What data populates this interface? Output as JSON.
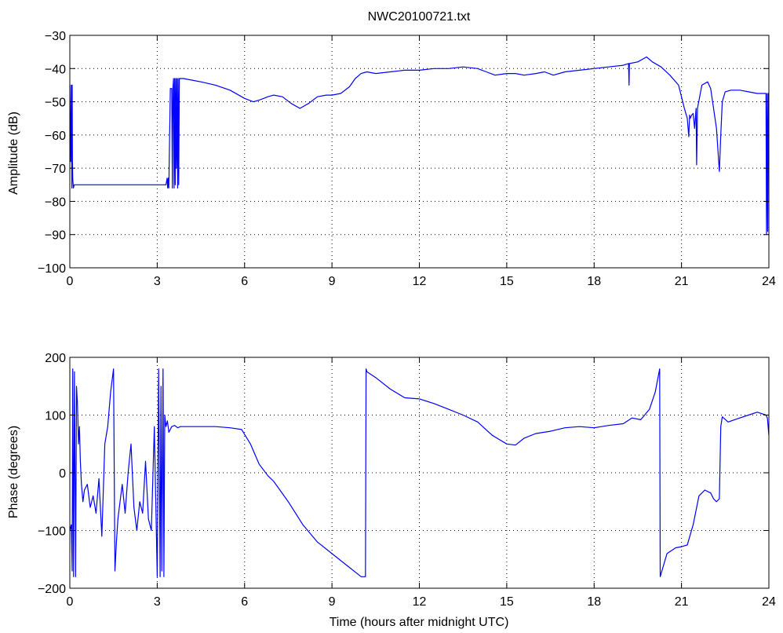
{
  "chart_data": [
    {
      "type": "line",
      "title": "NWC20100721.txt",
      "xlabel": "",
      "ylabel": "Amplitude (dB)",
      "xlim": [
        0,
        24
      ],
      "ylim": [
        -100,
        -30
      ],
      "xticks": [
        0,
        3,
        6,
        9,
        12,
        15,
        18,
        21,
        24
      ],
      "yticks": [
        -100,
        -90,
        -80,
        -70,
        -60,
        -50,
        -40,
        -30
      ],
      "grid": true,
      "line_color": "#0000ff",
      "series": [
        {
          "x": [
            0.0,
            0.03,
            0.05,
            0.07,
            0.08,
            0.09,
            0.1,
            0.12,
            0.15,
            3.3,
            3.34,
            3.36,
            3.38,
            3.4,
            3.45,
            3.5,
            3.52,
            3.54,
            3.56,
            3.58,
            3.6,
            3.62,
            3.64,
            3.66,
            3.68,
            3.7,
            3.72,
            3.74,
            3.76,
            3.8,
            3.85,
            3.9,
            4.5,
            5.0,
            5.5,
            6.0,
            6.3,
            6.5,
            6.8,
            7.0,
            7.3,
            7.6,
            7.9,
            8.0,
            8.2,
            8.5,
            8.8,
            9.0,
            9.3,
            9.6,
            9.8,
            10.0,
            10.2,
            10.5,
            11.0,
            11.5,
            12.0,
            12.5,
            13.0,
            13.5,
            14.0,
            14.3,
            14.6,
            15.0,
            15.3,
            15.6,
            16.0,
            16.3,
            16.6,
            17.0,
            17.5,
            18.0,
            18.5,
            19.0,
            19.18,
            19.2,
            19.21,
            19.22,
            19.5,
            19.8,
            20.0,
            20.3,
            20.6,
            20.9,
            21.1,
            21.2,
            21.25,
            21.28,
            21.3,
            21.35,
            21.4,
            21.45,
            21.5,
            21.52,
            21.55,
            21.7,
            21.9,
            22.0,
            22.2,
            22.3,
            22.35,
            22.4,
            22.5,
            22.7,
            23.0,
            23.3,
            23.6,
            23.9,
            23.92,
            23.94,
            23.96,
            23.98,
            24.0
          ],
          "y": [
            -45,
            -68,
            -45,
            -76,
            -45,
            -68,
            -73,
            -76,
            -75,
            -75,
            -73,
            -76,
            -73,
            -76,
            -46,
            -46,
            -76,
            -46,
            -43,
            -76,
            -43,
            -75,
            -43,
            -70,
            -43,
            -76,
            -43,
            -75,
            -43,
            -43,
            -43,
            -43,
            -44,
            -45,
            -46.5,
            -49,
            -50,
            -49.5,
            -48.5,
            -48,
            -48.5,
            -50.5,
            -52,
            -51.5,
            -50.5,
            -48.5,
            -48,
            -48,
            -47.5,
            -45.5,
            -43,
            -41.5,
            -41,
            -41.5,
            -41,
            -40.5,
            -40.5,
            -40,
            -40,
            -39.5,
            -40,
            -41,
            -42,
            -41.5,
            -41.5,
            -42,
            -41.5,
            -41,
            -42,
            -41,
            -40.5,
            -40,
            -39.5,
            -39,
            -38.5,
            -45,
            -38.5,
            -38.5,
            -38,
            -36.5,
            -38,
            -39.5,
            -42,
            -45,
            -52,
            -55,
            -60.5,
            -54,
            -55,
            -54,
            -53.5,
            -58,
            -52,
            -69,
            -52,
            -45,
            -44,
            -46,
            -58,
            -71,
            -60,
            -50,
            -47,
            -46.5,
            -46.5,
            -47,
            -47.5,
            -47.5,
            -90,
            -47.5,
            -89,
            -47.5,
            -47.5
          ]
        }
      ]
    },
    {
      "type": "line",
      "title": "",
      "xlabel": "Time (hours after midnight UTC)",
      "ylabel": "Phase (degrees)",
      "xlim": [
        0,
        24
      ],
      "ylim": [
        -200,
        200
      ],
      "xticks": [
        0,
        3,
        6,
        9,
        12,
        15,
        18,
        21,
        24
      ],
      "yticks": [
        -200,
        -100,
        0,
        100,
        200
      ],
      "grid": true,
      "line_color": "#0000ff",
      "series": [
        {
          "x": [
            0.0,
            0.05,
            0.08,
            0.1,
            0.13,
            0.16,
            0.2,
            0.23,
            0.26,
            0.3,
            0.33,
            0.36,
            0.4,
            0.45,
            0.5,
            0.6,
            0.7,
            0.8,
            0.9,
            1.0,
            1.1,
            1.2,
            1.3,
            1.4,
            1.5,
            1.55,
            1.6,
            1.65,
            1.7,
            1.8,
            1.9,
            2.0,
            2.1,
            2.2,
            2.3,
            2.4,
            2.5,
            2.6,
            2.7,
            2.8,
            2.9,
            3.0,
            3.05,
            3.1,
            3.13,
            3.16,
            3.2,
            3.23,
            3.26,
            3.3,
            3.35,
            3.4,
            3.5,
            3.6,
            3.7,
            3.8,
            4.0,
            4.5,
            5.0,
            5.5,
            5.9,
            6.2,
            6.5,
            6.8,
            7.0,
            7.5,
            8.0,
            8.5,
            9.0,
            9.5,
            10.0,
            10.15,
            10.17,
            10.2,
            10.5,
            11.0,
            11.5,
            12.0,
            12.5,
            13.0,
            13.5,
            14.0,
            14.5,
            15.0,
            15.3,
            15.6,
            16.0,
            16.5,
            17.0,
            17.5,
            18.0,
            18.5,
            19.0,
            19.3,
            19.6,
            19.9,
            20.1,
            20.25,
            20.27,
            20.3,
            20.5,
            20.8,
            21.0,
            21.2,
            21.4,
            21.6,
            21.8,
            22.0,
            22.1,
            22.2,
            22.3,
            22.35,
            22.4,
            22.6,
            23.0,
            23.3,
            23.6,
            23.9,
            23.95,
            24.0
          ],
          "y": [
            -100,
            -90,
            -170,
            180,
            -180,
            175,
            -180,
            150,
            120,
            50,
            80,
            20,
            -20,
            -50,
            -30,
            -20,
            -60,
            -40,
            -70,
            -10,
            -110,
            50,
            80,
            140,
            180,
            -170,
            -120,
            -80,
            -60,
            -20,
            -70,
            0,
            50,
            -60,
            -100,
            -50,
            -70,
            20,
            -80,
            -100,
            80,
            -180,
            180,
            -180,
            150,
            -170,
            180,
            -180,
            100,
            80,
            90,
            70,
            80,
            82,
            78,
            80,
            80,
            80,
            80,
            78,
            75,
            50,
            15,
            -5,
            -15,
            -50,
            -90,
            -120,
            -140,
            -160,
            -180,
            -180,
            180,
            175,
            165,
            145,
            130,
            128,
            120,
            110,
            100,
            88,
            65,
            50,
            48,
            60,
            68,
            72,
            78,
            80,
            78,
            82,
            85,
            95,
            92,
            110,
            140,
            180,
            -180,
            -175,
            -140,
            -130,
            -128,
            -125,
            -90,
            -40,
            -30,
            -35,
            -45,
            -50,
            -45,
            80,
            97,
            88,
            95,
            100,
            105,
            100,
            95,
            65
          ]
        }
      ]
    }
  ]
}
